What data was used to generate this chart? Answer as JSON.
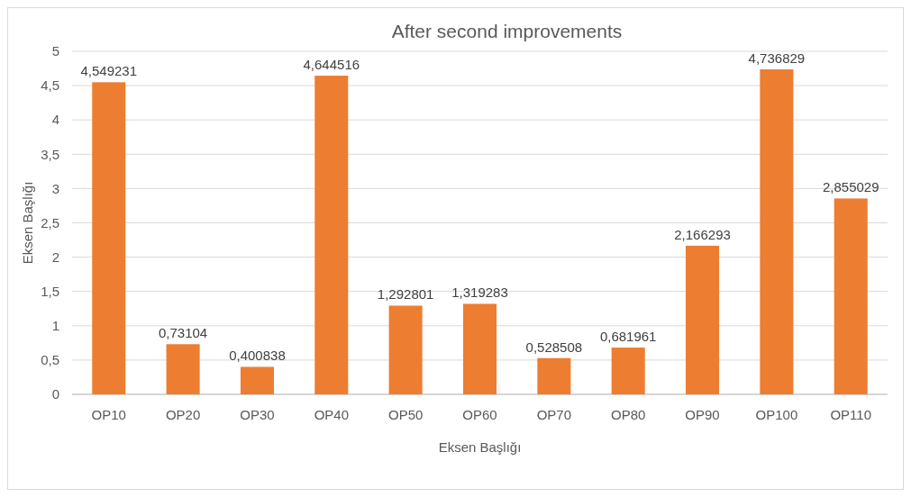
{
  "chart_data": {
    "type": "bar",
    "title": "After second improvements",
    "xlabel": "Eksen Başlığı",
    "ylabel": "Eksen Başlığı",
    "categories": [
      "OP10",
      "OP20",
      "OP30",
      "OP40",
      "OP50",
      "OP60",
      "OP70",
      "OP80",
      "OP90",
      "OP100",
      "OP110"
    ],
    "values": [
      4.549231,
      0.73104,
      0.400838,
      4.644516,
      1.292801,
      1.319283,
      0.528508,
      0.681961,
      2.166293,
      4.736829,
      2.855029
    ],
    "value_labels": [
      "4,549231",
      "0,73104",
      "0,400838",
      "4,644516",
      "1,292801",
      "1,319283",
      "0,528508",
      "0,681961",
      "2,166293",
      "4,736829",
      "2,855029"
    ],
    "color": "#ed7d31",
    "ylim": [
      0,
      5
    ],
    "yticks": [
      0,
      {
        "value": 0.5,
        "label": "0,5"
      },
      1,
      {
        "value": 1.5,
        "label": "1,5"
      },
      2,
      {
        "value": 2.5,
        "label": "2,5"
      },
      3,
      {
        "value": 3.5,
        "label": "3,5"
      },
      4,
      {
        "value": 4.5,
        "label": "4,5"
      },
      5
    ],
    "grid": "y"
  }
}
